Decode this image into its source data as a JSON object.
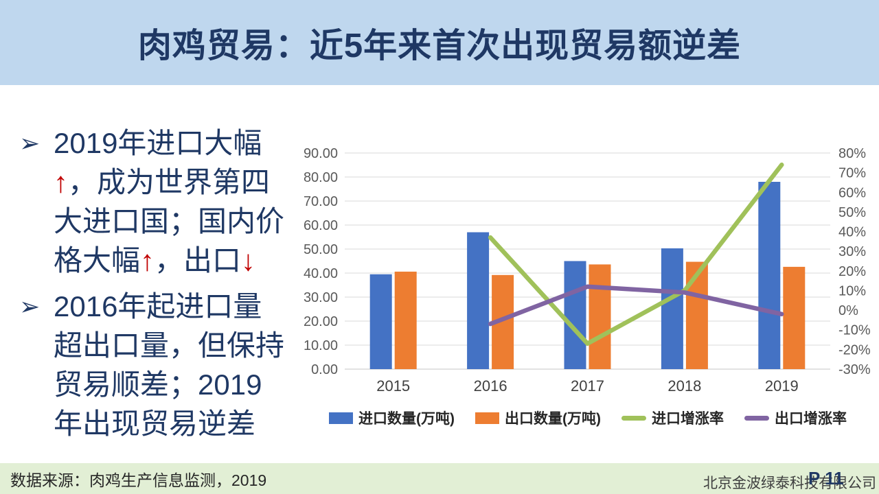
{
  "title": "肉鸡贸易：近5年来首次出现贸易额逆差",
  "bullet_marker": "➢",
  "bullets": [
    {
      "lines": [
        [
          {
            "t": "2019年进口大幅"
          }
        ],
        [
          {
            "t": "↑",
            "red": true
          },
          {
            "t": "，成为世界第四"
          }
        ],
        [
          {
            "t": "大进口国；国内价"
          }
        ],
        [
          {
            "t": "格大幅"
          },
          {
            "t": "↑",
            "red": true
          },
          {
            "t": "，出口"
          },
          {
            "t": "↓",
            "red": true
          }
        ]
      ]
    },
    {
      "lines": [
        [
          {
            "t": "2016年起进口量"
          }
        ],
        [
          {
            "t": "超出口量，但保持"
          }
        ],
        [
          {
            "t": "贸易顺差；2019"
          }
        ],
        [
          {
            "t": "年出现贸易逆差"
          }
        ]
      ]
    }
  ],
  "chart_data": {
    "type": "combo-bar-line",
    "categories": [
      "2015",
      "2016",
      "2017",
      "2018",
      "2019"
    ],
    "series": [
      {
        "name": "进口数量(万吨)",
        "type": "bar",
        "axis": "left",
        "color": "#4472C4",
        "values": [
          39.5,
          57,
          45,
          50.3,
          78
        ]
      },
      {
        "name": "出口数量(万吨)",
        "type": "bar",
        "axis": "left",
        "color": "#ED7D31",
        "values": [
          40.6,
          39.2,
          43.6,
          44.7,
          42.6
        ]
      },
      {
        "name": "进口增涨率",
        "type": "line",
        "axis": "right",
        "color": "#A0C15A",
        "values": [
          null,
          37,
          -17,
          10,
          74
        ]
      },
      {
        "name": "出口增涨率",
        "type": "line",
        "axis": "right",
        "color": "#8064A2",
        "values": [
          null,
          -7,
          12,
          9,
          -2
        ]
      }
    ],
    "left_axis": {
      "min": 0,
      "max": 90,
      "step": 10,
      "ticks": [
        "90.00",
        "80.00",
        "70.00",
        "60.00",
        "50.00",
        "40.00",
        "30.00",
        "20.00",
        "10.00",
        "0.00"
      ]
    },
    "right_axis": {
      "min": -30,
      "max": 80,
      "step": 10,
      "ticks": [
        "80%",
        "70%",
        "60%",
        "50%",
        "40%",
        "30%",
        "20%",
        "10%",
        "0%",
        "-10%",
        "-20%",
        "-30%"
      ]
    },
    "grid": true,
    "legend_position": "bottom"
  },
  "footer": {
    "source": "数据来源：肉鸡生产信息监测，2019",
    "company": "北京金波绿泰科技有限公司",
    "page": "P 11"
  },
  "colors": {
    "title_bg": "#BFD7EE",
    "title_text": "#1F3864",
    "body_text": "#1F3864",
    "accent_red": "#C00000",
    "bar_import": "#4472C4",
    "bar_export": "#ED7D31",
    "line_import_growth": "#A0C15A",
    "line_export_growth": "#8064A2",
    "gridline": "#D9D9D9",
    "axis_text": "#595959",
    "footer_bg": "#E2EFD5",
    "footer_text": "#262626",
    "page_text": "#1F3864"
  }
}
